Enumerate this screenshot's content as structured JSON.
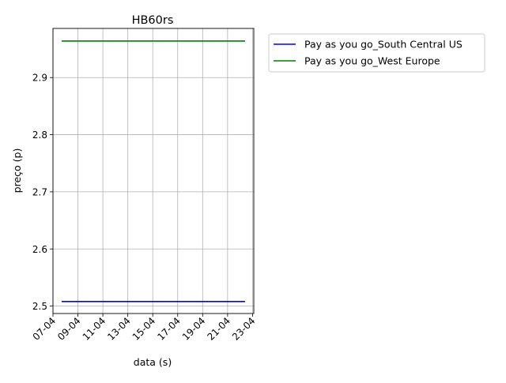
{
  "chart_data": {
    "type": "line",
    "title": "HB60rs",
    "xlabel": "data (s)",
    "ylabel": "preço (p)",
    "x_tick_labels": [
      "07-04",
      "09-04",
      "11-04",
      "13-04",
      "15-04",
      "17-04",
      "19-04",
      "21-04",
      "23-04"
    ],
    "x_tick_days": [
      7,
      9,
      11,
      13,
      15,
      17,
      19,
      21,
      23
    ],
    "x_range_days": [
      7,
      23.1
    ],
    "y_ticks": [
      "2.5",
      "2.6",
      "2.7",
      "2.8",
      "2.9"
    ],
    "ylim": [
      2.487,
      2.986
    ],
    "grid": true,
    "legend_position": "outside-top-right",
    "series": [
      {
        "name": "Pay as you go_South Central US",
        "color": "#0000ff",
        "x_days": [
          7.7,
          22.4
        ],
        "values": [
          2.508,
          2.508
        ]
      },
      {
        "name": "Pay as you go_West Europe",
        "color": "#008000",
        "x_days": [
          7.7,
          22.4
        ],
        "values": [
          2.964,
          2.964
        ]
      }
    ]
  }
}
